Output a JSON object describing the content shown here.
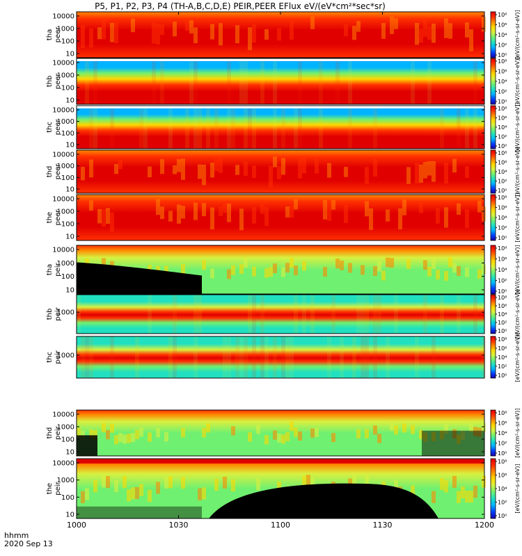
{
  "title": "P5, P1, P2, P3, P4 (TH-A,B,C,D,E) PEIR,PEER EFlux eV/(eV*cm²*sec*sr)",
  "colors": {
    "lowest": "#000000",
    "colormap": [
      "#1a00a8",
      "#0040ff",
      "#00b4ff",
      "#20e0c0",
      "#70f070",
      "#d8f040",
      "#ffd800",
      "#ff8800",
      "#ff3000",
      "#e00000"
    ]
  },
  "footer": {
    "time_label": "hhmm",
    "date_label": "2020 Sep 13"
  },
  "chart_data": {
    "type": "heatmap",
    "x": {
      "ticks": [
        "1000",
        "1030",
        "1100",
        "1130",
        "1200"
      ],
      "range": [
        "10:00",
        "12:00"
      ]
    },
    "colorbar": {
      "unit_label": "eV/(cm²-s-sr-eV)",
      "ticks": [
        "10⁰",
        "10²",
        "10⁴",
        "10⁶",
        "10⁸"
      ],
      "scale": "log"
    },
    "panels": [
      {
        "ylabel": [
          "tha",
          "peer"
        ],
        "yticks": [
          "10000",
          "1000",
          "100",
          "10"
        ],
        "fill": "electron_hot"
      },
      {
        "ylabel": [
          "thb",
          "peer"
        ],
        "yticks": [
          "10000",
          "1000",
          "100",
          "10"
        ],
        "fill": "electron_banded"
      },
      {
        "ylabel": [
          "thc",
          "peer"
        ],
        "yticks": [
          "10000",
          "1000",
          "100",
          "10"
        ],
        "fill": "electron_banded"
      },
      {
        "ylabel": [
          "thd",
          "peer"
        ],
        "yticks": [
          "10000",
          "1000",
          "100",
          "10"
        ],
        "fill": "electron_hot"
      },
      {
        "ylabel": [
          "the",
          "peer"
        ],
        "yticks": [
          "10000",
          "1000",
          "100",
          "10"
        ],
        "fill": "electron_hot"
      },
      {
        "ylabel": [
          "tha",
          "peir"
        ],
        "yticks": [
          "10000",
          "1000",
          "100",
          "10"
        ],
        "fill": "ion_sparse"
      },
      {
        "ylabel": [
          "thb",
          "peir"
        ],
        "yticks": [
          "1000"
        ],
        "fill": "ion_banded"
      },
      {
        "ylabel": [
          "thc",
          "peir"
        ],
        "yticks": [
          "1000"
        ],
        "fill": "ion_banded"
      },
      {
        "ylabel": [
          "thd",
          "peir"
        ],
        "yticks": [
          "10000",
          "1000",
          "100",
          "10"
        ],
        "fill": "ion_sparse"
      },
      {
        "ylabel": [
          "the",
          "peir"
        ],
        "yticks": [
          "10000",
          "1000",
          "100",
          "10"
        ],
        "fill": "ion_sparse"
      }
    ]
  }
}
